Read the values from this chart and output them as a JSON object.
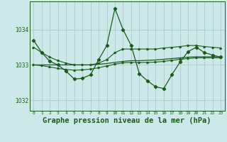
{
  "background_color": "#cce8e8",
  "grid_color": "#aacccc",
  "line_color": "#1a5c1a",
  "title": "Graphe pression niveau de la mer (hPa)",
  "title_fontsize": 7.5,
  "title_fontweight": "bold",
  "title_color": "#1a5c1a",
  "ylim": [
    1031.7,
    1034.8
  ],
  "yticks": [
    1032,
    1033,
    1034
  ],
  "xlim": [
    -0.5,
    23.5
  ],
  "xticks": [
    0,
    1,
    2,
    3,
    4,
    5,
    6,
    7,
    8,
    9,
    10,
    11,
    12,
    13,
    14,
    15,
    16,
    17,
    18,
    19,
    20,
    21,
    22,
    23
  ],
  "series1_x": [
    0,
    1,
    2,
    3,
    4,
    5,
    6,
    7,
    8,
    9,
    10,
    11,
    12,
    13,
    14,
    15,
    16,
    17,
    18,
    19,
    20,
    21,
    22,
    23
  ],
  "series1_y": [
    1033.7,
    1033.35,
    1033.1,
    1033.0,
    1032.82,
    1032.6,
    1032.62,
    1032.72,
    1033.15,
    1033.55,
    1034.6,
    1034.0,
    1033.55,
    1032.75,
    1032.55,
    1032.38,
    1032.33,
    1032.72,
    1033.08,
    1033.38,
    1033.5,
    1033.35,
    1033.28,
    1033.22
  ],
  "series2_x": [
    0,
    1,
    2,
    3,
    4,
    5,
    6,
    7,
    8,
    9,
    10,
    11,
    12,
    13,
    14,
    15,
    16,
    17,
    18,
    19,
    20,
    21,
    22,
    23
  ],
  "series2_y": [
    1033.5,
    1033.35,
    1033.22,
    1033.12,
    1033.05,
    1033.0,
    1033.0,
    1033.0,
    1033.05,
    1033.15,
    1033.35,
    1033.45,
    1033.45,
    1033.45,
    1033.45,
    1033.45,
    1033.48,
    1033.5,
    1033.52,
    1033.55,
    1033.55,
    1033.52,
    1033.5,
    1033.48
  ],
  "series3_x": [
    0,
    1,
    2,
    3,
    4,
    5,
    6,
    7,
    8,
    9,
    10,
    11,
    12,
    13,
    14,
    15,
    16,
    17,
    18,
    19,
    20,
    21,
    22,
    23
  ],
  "series3_y": [
    1033.0,
    1033.0,
    1033.0,
    1033.0,
    1033.0,
    1033.0,
    1033.0,
    1033.0,
    1033.02,
    1033.04,
    1033.07,
    1033.1,
    1033.12,
    1033.12,
    1033.13,
    1033.14,
    1033.16,
    1033.18,
    1033.2,
    1033.22,
    1033.23,
    1033.23,
    1033.23,
    1033.23
  ],
  "series4_x": [
    0,
    1,
    2,
    3,
    4,
    5,
    6,
    7,
    8,
    9,
    10,
    11,
    12,
    13,
    14,
    15,
    16,
    17,
    18,
    19,
    20,
    21,
    22,
    23
  ],
  "series4_y": [
    1033.0,
    1032.98,
    1032.94,
    1032.9,
    1032.87,
    1032.85,
    1032.86,
    1032.88,
    1032.92,
    1032.97,
    1033.02,
    1033.06,
    1033.07,
    1033.07,
    1033.07,
    1033.08,
    1033.1,
    1033.13,
    1033.16,
    1033.18,
    1033.2,
    1033.2,
    1033.2,
    1033.2
  ]
}
